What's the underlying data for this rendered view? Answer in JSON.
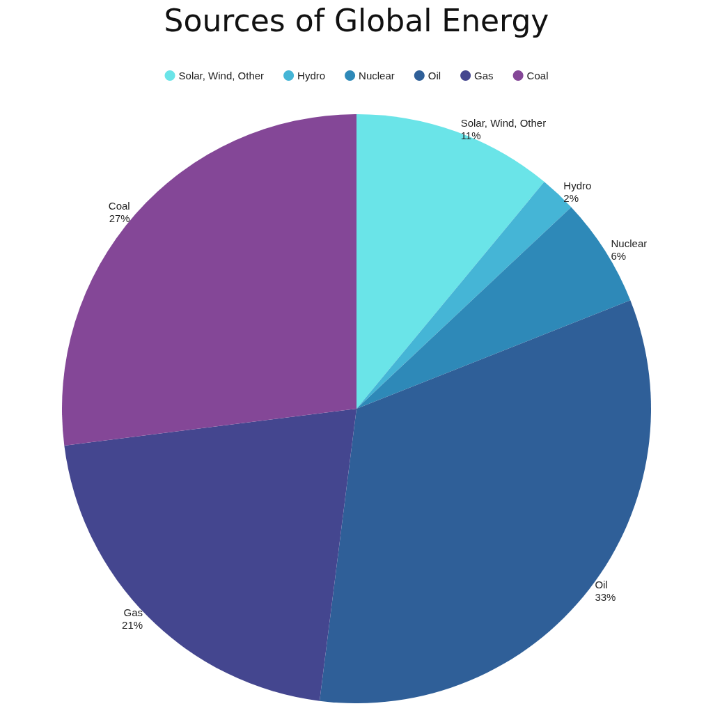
{
  "chart_data": {
    "type": "pie",
    "title": "Sources of Global Energy",
    "categories": [
      "Solar, Wind, Other",
      "Hydro",
      "Nuclear",
      "Oil",
      "Gas",
      "Coal"
    ],
    "values": [
      11,
      2,
      6,
      33,
      21,
      27
    ],
    "value_labels": [
      "11%",
      "2%",
      "6%",
      "33%",
      "21%",
      "27%"
    ],
    "colors": [
      "#6ae4e8",
      "#45b5d6",
      "#2e89b8",
      "#2f5f98",
      "#44468f",
      "#844797"
    ],
    "legend": "top"
  }
}
